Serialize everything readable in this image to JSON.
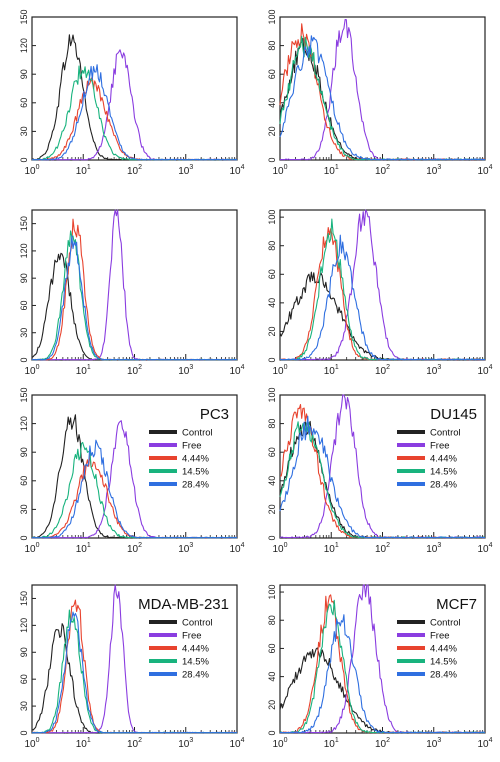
{
  "colors": {
    "Control": "#222222",
    "Free": "#8a3de0",
    "4.44%": "#e8432e",
    "14.5%": "#18b37e",
    "28.4%": "#2f6fe0"
  },
  "chart_data": [
    {
      "type": "line",
      "x_scale": "log",
      "xlim": [
        1,
        10000
      ],
      "x_ticks": [
        "10^0",
        "10^1",
        "10^2",
        "10^3",
        "10^4"
      ],
      "ylim": [
        0,
        150
      ],
      "y_ticks": [
        "0",
        "30",
        "60",
        "90",
        "120",
        "150"
      ],
      "series": [
        {
          "name": "Control",
          "peak_x": 6,
          "peak_y": 126,
          "width": 0.22
        },
        {
          "name": "Free",
          "peak_x": 55,
          "peak_y": 115,
          "width": 0.2
        },
        {
          "name": "4.44%",
          "peak_x": 15,
          "peak_y": 82,
          "width": 0.28
        },
        {
          "name": "14.5%",
          "peak_x": 10,
          "peak_y": 95,
          "width": 0.26
        },
        {
          "name": "28.4%",
          "peak_x": 17,
          "peak_y": 95,
          "width": 0.26
        }
      ]
    },
    {
      "type": "line",
      "x_scale": "log",
      "xlim": [
        1,
        10000
      ],
      "x_ticks": [
        "10^0",
        "10^1",
        "10^2",
        "10^3",
        "10^4"
      ],
      "ylim": [
        0,
        100
      ],
      "y_ticks": [
        "0",
        "20",
        "40",
        "60",
        "80",
        "100"
      ],
      "series": [
        {
          "name": "Control",
          "peak_x": 3,
          "peak_y": 78,
          "width": 0.35
        },
        {
          "name": "Free",
          "peak_x": 18,
          "peak_y": 97,
          "width": 0.22
        },
        {
          "name": "4.44%",
          "peak_x": 2.5,
          "peak_y": 88,
          "width": 0.33
        },
        {
          "name": "14.5%",
          "peak_x": 3,
          "peak_y": 80,
          "width": 0.33
        },
        {
          "name": "28.4%",
          "peak_x": 4,
          "peak_y": 80,
          "width": 0.35
        }
      ]
    },
    {
      "type": "line",
      "x_scale": "log",
      "xlim": [
        1,
        10000
      ],
      "x_ticks": [
        "10^0",
        "10^1",
        "10^2",
        "10^3",
        "10^4"
      ],
      "ylim": [
        0,
        165
      ],
      "y_ticks": [
        "0",
        "30",
        "60",
        "90",
        "120",
        "150"
      ],
      "series": [
        {
          "name": "Control",
          "peak_x": 3.5,
          "peak_y": 118,
          "width": 0.2
        },
        {
          "name": "Free",
          "peak_x": 45,
          "peak_y": 165,
          "width": 0.12
        },
        {
          "name": "4.44%",
          "peak_x": 7,
          "peak_y": 150,
          "width": 0.16
        },
        {
          "name": "14.5%",
          "peak_x": 6,
          "peak_y": 135,
          "width": 0.17
        },
        {
          "name": "28.4%",
          "peak_x": 6.5,
          "peak_y": 128,
          "width": 0.17
        }
      ]
    },
    {
      "type": "line",
      "x_scale": "log",
      "xlim": [
        1,
        10000
      ],
      "x_ticks": [
        "10^0",
        "10^1",
        "10^2",
        "10^3",
        "10^4"
      ],
      "ylim": [
        0,
        105
      ],
      "y_ticks": [
        "0",
        "20",
        "40",
        "60",
        "80",
        "100"
      ],
      "series": [
        {
          "name": "Control",
          "peak_x": 5,
          "peak_y": 58,
          "width": 0.45
        },
        {
          "name": "Free",
          "peak_x": 45,
          "peak_y": 104,
          "width": 0.22
        },
        {
          "name": "4.44%",
          "peak_x": 9,
          "peak_y": 93,
          "width": 0.22
        },
        {
          "name": "14.5%",
          "peak_x": 10,
          "peak_y": 90,
          "width": 0.22
        },
        {
          "name": "28.4%",
          "peak_x": 16,
          "peak_y": 80,
          "width": 0.24
        }
      ]
    },
    {
      "type": "line",
      "title": "PC3",
      "x_scale": "log",
      "xlim": [
        1,
        10000
      ],
      "x_ticks": [
        "10^0",
        "10^1",
        "10^2",
        "10^3",
        "10^4"
      ],
      "ylim": [
        0,
        150
      ],
      "y_ticks": [
        "0",
        "30",
        "60",
        "90",
        "120",
        "150"
      ],
      "legend": "right",
      "series": [
        {
          "name": "Control",
          "peak_x": 6,
          "peak_y": 126,
          "width": 0.22
        },
        {
          "name": "Free",
          "peak_x": 55,
          "peak_y": 115,
          "width": 0.2
        },
        {
          "name": "4.44%",
          "peak_x": 15,
          "peak_y": 82,
          "width": 0.28
        },
        {
          "name": "14.5%",
          "peak_x": 10,
          "peak_y": 95,
          "width": 0.26
        },
        {
          "name": "28.4%",
          "peak_x": 17,
          "peak_y": 95,
          "width": 0.26
        }
      ]
    },
    {
      "type": "line",
      "title": "DU145",
      "x_scale": "log",
      "xlim": [
        1,
        10000
      ],
      "x_ticks": [
        "10^0",
        "10^1",
        "10^2",
        "10^3",
        "10^4"
      ],
      "ylim": [
        0,
        100
      ],
      "y_ticks": [
        "0",
        "20",
        "40",
        "60",
        "80",
        "100"
      ],
      "legend": "right",
      "series": [
        {
          "name": "Control",
          "peak_x": 3,
          "peak_y": 78,
          "width": 0.35
        },
        {
          "name": "Free",
          "peak_x": 18,
          "peak_y": 97,
          "width": 0.22
        },
        {
          "name": "4.44%",
          "peak_x": 2.5,
          "peak_y": 88,
          "width": 0.33
        },
        {
          "name": "14.5%",
          "peak_x": 3,
          "peak_y": 80,
          "width": 0.33
        },
        {
          "name": "28.4%",
          "peak_x": 4,
          "peak_y": 80,
          "width": 0.35
        }
      ]
    },
    {
      "type": "line",
      "title": "MDA-MB-231",
      "x_scale": "log",
      "xlim": [
        1,
        10000
      ],
      "x_ticks": [
        "10^0",
        "10^1",
        "10^2",
        "10^3",
        "10^4"
      ],
      "ylim": [
        0,
        165
      ],
      "y_ticks": [
        "0",
        "30",
        "60",
        "90",
        "120",
        "150"
      ],
      "legend": "right",
      "series": [
        {
          "name": "Control",
          "peak_x": 3.5,
          "peak_y": 118,
          "width": 0.2
        },
        {
          "name": "Free",
          "peak_x": 45,
          "peak_y": 165,
          "width": 0.12
        },
        {
          "name": "4.44%",
          "peak_x": 7,
          "peak_y": 150,
          "width": 0.16
        },
        {
          "name": "14.5%",
          "peak_x": 6,
          "peak_y": 135,
          "width": 0.17
        },
        {
          "name": "28.4%",
          "peak_x": 6.5,
          "peak_y": 128,
          "width": 0.17
        }
      ]
    },
    {
      "type": "line",
      "title": "MCF7",
      "x_scale": "log",
      "xlim": [
        1,
        10000
      ],
      "x_ticks": [
        "10^0",
        "10^1",
        "10^2",
        "10^3",
        "10^4"
      ],
      "ylim": [
        0,
        105
      ],
      "y_ticks": [
        "0",
        "20",
        "40",
        "60",
        "80",
        "100"
      ],
      "legend": "right",
      "series": [
        {
          "name": "Control",
          "peak_x": 5,
          "peak_y": 58,
          "width": 0.45
        },
        {
          "name": "Free",
          "peak_x": 45,
          "peak_y": 104,
          "width": 0.22
        },
        {
          "name": "4.44%",
          "peak_x": 9,
          "peak_y": 93,
          "width": 0.22
        },
        {
          "name": "14.5%",
          "peak_x": 10,
          "peak_y": 90,
          "width": 0.22
        },
        {
          "name": "28.4%",
          "peak_x": 16,
          "peak_y": 80,
          "width": 0.24
        }
      ]
    }
  ]
}
